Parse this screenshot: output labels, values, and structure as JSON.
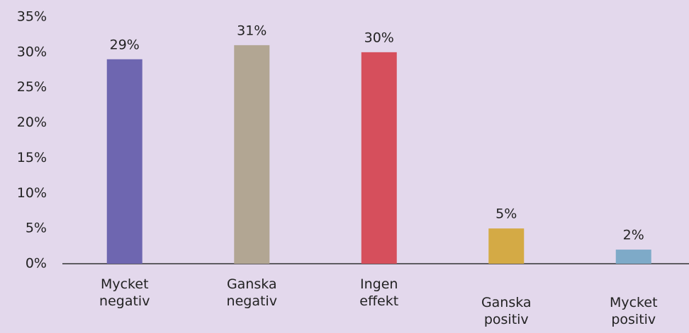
{
  "chart_data": {
    "type": "bar",
    "categories": [
      "Mycket negativ",
      "Ganska negativ",
      "Ingen effekt",
      "Ganska positiv",
      "Mycket positiv"
    ],
    "values": [
      29,
      31,
      30,
      5,
      2
    ],
    "value_labels": [
      "29%",
      "31%",
      "30%",
      "5%",
      "2%"
    ],
    "colors": [
      "#6e66b0",
      "#b2a693",
      "#d64f5c",
      "#d4aa45",
      "#7eaac8"
    ],
    "ylim": [
      0,
      35
    ],
    "yticks": [
      {
        "value": 0,
        "label": "0%"
      },
      {
        "value": 5,
        "label": "5%"
      },
      {
        "value": 10,
        "label": "10%"
      },
      {
        "value": 15,
        "label": "15%"
      },
      {
        "value": 20,
        "label": "20%"
      },
      {
        "value": 25,
        "label": "25%"
      },
      {
        "value": 30,
        "label": "30%"
      },
      {
        "value": 35,
        "label": "35%"
      }
    ],
    "grid": false
  }
}
